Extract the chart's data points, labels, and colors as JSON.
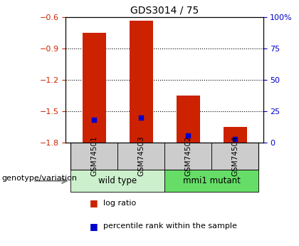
{
  "title": "GDS3014 / 75",
  "categories": [
    "GSM74501",
    "GSM74503",
    "GSM74502",
    "GSM74504"
  ],
  "log_ratios": [
    -0.75,
    -0.63,
    -1.35,
    -1.65
  ],
  "percentile_ranks": [
    18,
    20,
    6,
    3
  ],
  "ylim_left": [
    -1.8,
    -0.6
  ],
  "yticks_left": [
    -1.8,
    -1.5,
    -1.2,
    -0.9,
    -0.6
  ],
  "ylim_right": [
    0,
    100
  ],
  "yticks_right": [
    0,
    25,
    50,
    75,
    100
  ],
  "bar_color": "#cc2200",
  "pct_color": "#0000cc",
  "bar_width": 0.5,
  "group_labels": [
    "wild type",
    "mmi1 mutant"
  ],
  "group_ranges": [
    [
      0,
      1
    ],
    [
      2,
      3
    ]
  ],
  "group_bg_light": "#ccf0cc",
  "group_bg_bright": "#66dd66",
  "xlabel_area_color": "#cccccc",
  "legend_red_label": "log ratio",
  "legend_blue_label": "percentile rank within the sample",
  "genotype_label": "genotype/variation"
}
